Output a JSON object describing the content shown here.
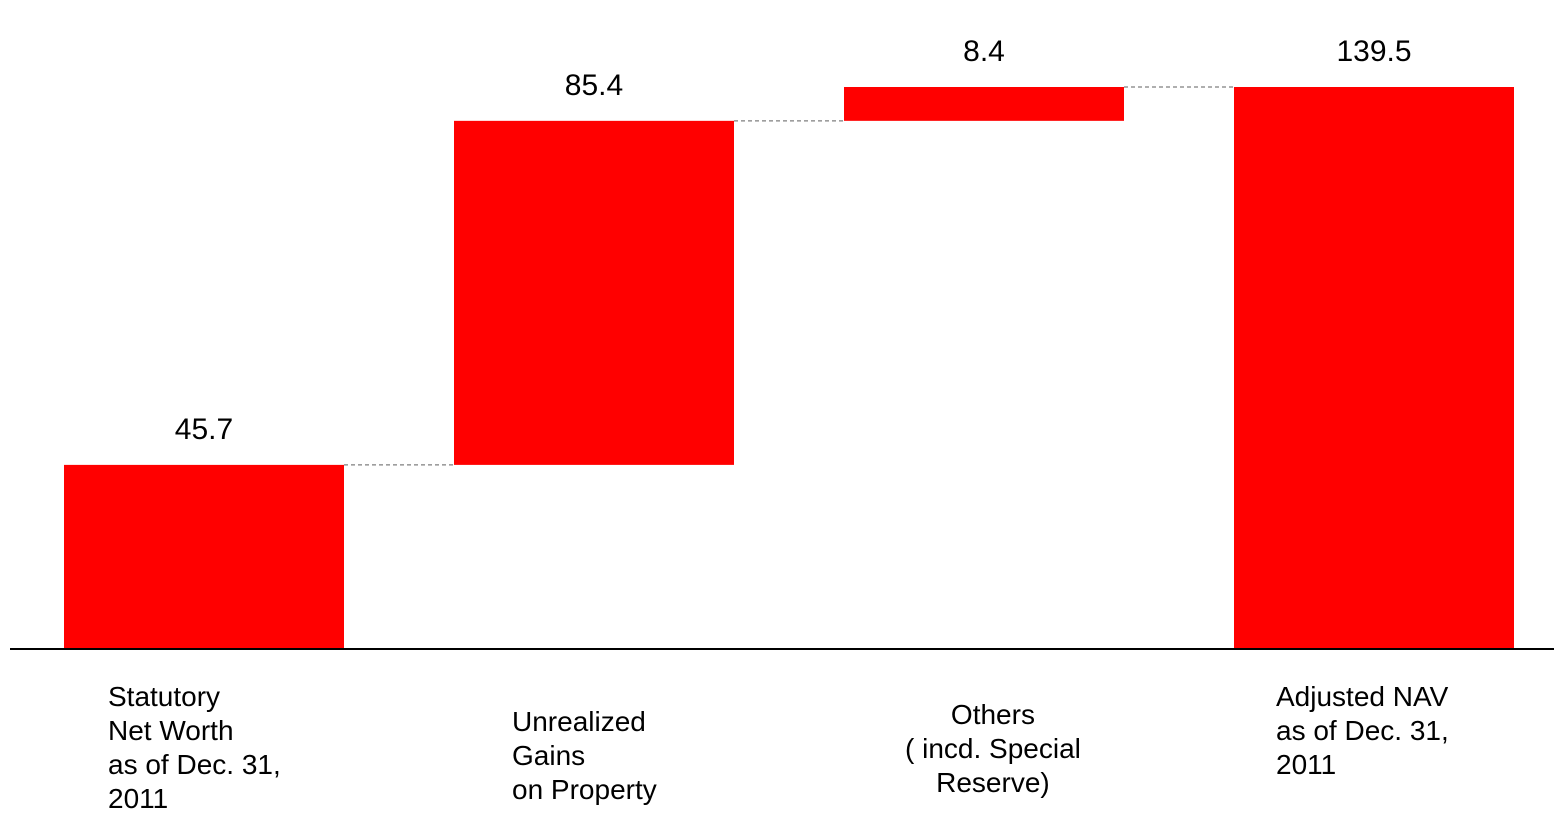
{
  "chart_data": {
    "type": "bar",
    "subtype": "waterfall",
    "categories": [
      [
        "Statutory",
        "Net Worth",
        "as of Dec. 31,",
        "2011"
      ],
      [
        "Unrealized",
        "Gains",
        "on Property"
      ],
      [
        "Others",
        "( incd. Special",
        "Reserve)"
      ],
      [
        "Adjusted NAV",
        "as of Dec. 31,",
        "2011"
      ]
    ],
    "values": [
      45.7,
      85.4,
      8.4,
      139.5
    ],
    "value_labels": [
      "45.7",
      "85.4",
      "8.4",
      "139.5"
    ],
    "steps": [
      "total",
      "increase",
      "increase",
      "total"
    ],
    "ylim": [
      0,
      139.5
    ],
    "grid": false,
    "connectors": true,
    "title": "",
    "xlabel": "",
    "ylabel": ""
  },
  "colors": {
    "bar": "#ff0000",
    "axis": "#000000",
    "connector": "#7f7f7f",
    "text": "#000000"
  }
}
